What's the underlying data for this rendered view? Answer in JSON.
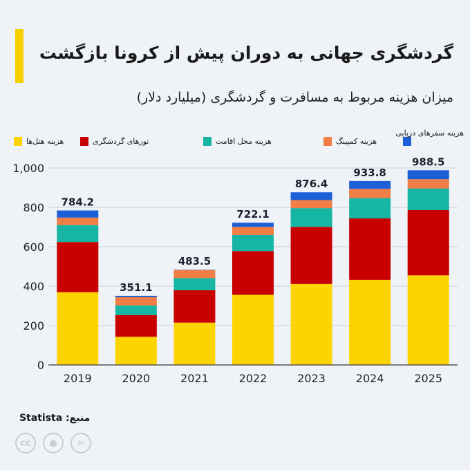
{
  "header": {
    "title": "گردشگری جهانی به دوران پیش از کرونا بازگشت",
    "subtitle": "میزان هزینه مربوط به مسافرت و گردشگری (میلیارد دلار)"
  },
  "source": "منبع: Statista",
  "license_icons": [
    "cc-icon",
    "attribution-icon",
    "no-derivatives-icon"
  ],
  "chart_data": {
    "type": "bar",
    "stacked": true,
    "categories": [
      "2019",
      "2020",
      "2021",
      "2022",
      "2023",
      "2024",
      "2025"
    ],
    "series": [
      {
        "name": "هزینه هتل‌ها",
        "color": "#fdd400",
        "values": [
          369,
          143,
          215,
          356,
          411,
          432,
          455
        ]
      },
      {
        "name": "تورهای گردشگری",
        "color": "#c80000",
        "values": [
          255,
          110,
          164,
          222,
          290,
          312,
          331
        ]
      },
      {
        "name": "هزینه محل اقامت",
        "color": "#17b5a4",
        "values": [
          86,
          49,
          62,
          82,
          95,
          103,
          110
        ]
      },
      {
        "name": "هزینه کمپینگ",
        "color": "#f07e45",
        "values": [
          38,
          42,
          41,
          41,
          41,
          47,
          47
        ]
      },
      {
        "name": "هزینه سفرهای دریایی",
        "color": "#1d5fd6",
        "values": [
          36.2,
          7.1,
          1.5,
          21.1,
          39.4,
          39.8,
          45.5
        ]
      }
    ],
    "totals": [
      "784.2",
      "351.1",
      "483.5",
      "722.1",
      "876.4",
      "933.8",
      "988.5"
    ],
    "ylim": [
      0,
      1000
    ],
    "yticks": [
      "0",
      "200",
      "400",
      "600",
      "800",
      "1,000"
    ],
    "grid": true,
    "legend_position": "top"
  }
}
